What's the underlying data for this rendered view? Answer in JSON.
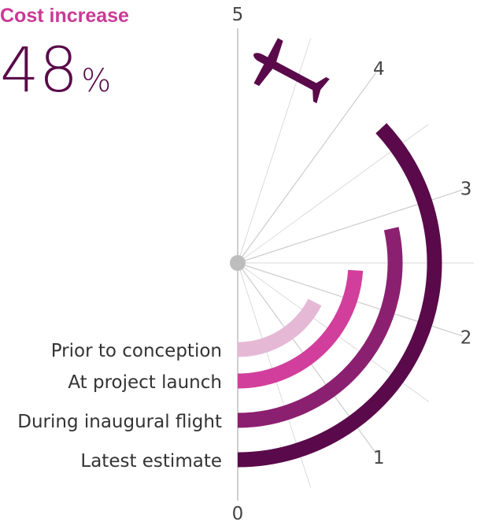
{
  "header": {
    "title": "Cost increase",
    "value": "48",
    "unit": "%"
  },
  "chart_data": {
    "type": "radial-bar",
    "title": "Cost increase",
    "headline_value": "48%",
    "scale_ticks": [
      "0",
      "1",
      "2",
      "3",
      "4",
      "5"
    ],
    "range": [
      0,
      5
    ],
    "categories": [
      "Prior to conception",
      "At project launch",
      "During inaugural flight",
      "Latest estimate"
    ],
    "values": [
      1.75,
      2.4,
      2.85,
      3.7
    ],
    "colors": [
      "#e5b9d6",
      "#d23e9c",
      "#8c2070",
      "#5a0a4a"
    ],
    "grid": true,
    "annotation_icon": "airplane-icon"
  },
  "colors": {
    "title": "#c93a96",
    "headline": "#5a0a4a",
    "grid": "#cccccc",
    "axis": "#bdbdbd",
    "center": "#bdbdbd"
  }
}
